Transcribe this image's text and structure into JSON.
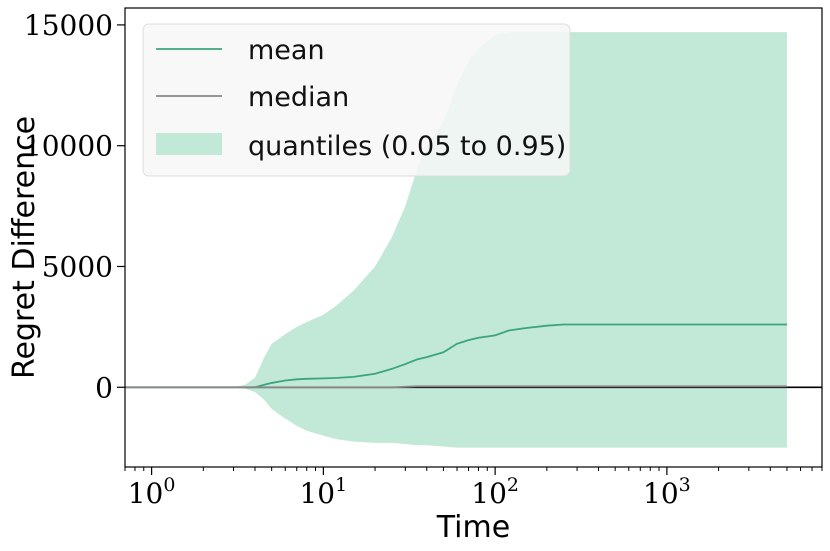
{
  "chart_data": {
    "type": "line",
    "title": "",
    "xlabel": "Time",
    "ylabel": "Regret Difference",
    "xscale": "log",
    "xlim": [
      0.7,
      8000
    ],
    "ylim": [
      -3300,
      15700
    ],
    "x_ticks": [
      {
        "value": 1,
        "base": "10",
        "exp": "0"
      },
      {
        "value": 10,
        "base": "10",
        "exp": "1"
      },
      {
        "value": 100,
        "base": "10",
        "exp": "2"
      },
      {
        "value": 1000,
        "base": "10",
        "exp": "3"
      }
    ],
    "y_ticks": [
      {
        "value": 0,
        "label": "0"
      },
      {
        "value": 5000,
        "label": "5000"
      },
      {
        "value": 10000,
        "label": "10000"
      },
      {
        "value": 15000,
        "label": "15000"
      }
    ],
    "grid": false,
    "legend": {
      "position": "top-left",
      "entries": [
        {
          "key": "mean",
          "label": "mean"
        },
        {
          "key": "median",
          "label": "median"
        },
        {
          "key": "quantiles",
          "label": "quantiles (0.05 to 0.95)"
        }
      ]
    },
    "colors": {
      "mean": "#3aa67a",
      "median": "#888888",
      "quantiles": "#c2e8d7",
      "zero_line": "#000000"
    },
    "zero_line": 0,
    "x": [
      0.7,
      1,
      2,
      3,
      3.5,
      4,
      4.5,
      5,
      6,
      7,
      8,
      10,
      12,
      15,
      20,
      25,
      30,
      35,
      40,
      50,
      60,
      70,
      80,
      100,
      120,
      150,
      200,
      250,
      300,
      500,
      1000,
      2000,
      5000
    ],
    "series": [
      {
        "name": "mean",
        "values": [
          0,
          0,
          0,
          0,
          0,
          0,
          100,
          180,
          280,
          330,
          350,
          370,
          390,
          430,
          560,
          760,
          960,
          1150,
          1250,
          1450,
          1800,
          1950,
          2050,
          2150,
          2350,
          2450,
          2550,
          2600,
          2600,
          2600,
          2600,
          2600,
          2600
        ]
      },
      {
        "name": "median",
        "values": [
          0,
          0,
          0,
          0,
          0,
          0,
          0,
          0,
          0,
          0,
          0,
          0,
          0,
          0,
          0,
          0,
          20,
          40,
          40,
          40,
          40,
          40,
          40,
          40,
          40,
          40,
          40,
          40,
          40,
          40,
          40,
          40,
          40
        ]
      }
    ],
    "band": {
      "name": "quantiles (0.05 to 0.95)",
      "lower": [
        0,
        0,
        0,
        0,
        -50,
        -200,
        -500,
        -900,
        -1300,
        -1600,
        -1800,
        -2000,
        -2150,
        -2250,
        -2300,
        -2300,
        -2350,
        -2400,
        -2400,
        -2450,
        -2500,
        -2500,
        -2500,
        -2500,
        -2500,
        -2500,
        -2500,
        -2500,
        -2500,
        -2500,
        -2500,
        -2500,
        -2500
      ],
      "upper": [
        0,
        0,
        0,
        0,
        100,
        400,
        1200,
        1800,
        2200,
        2500,
        2700,
        3000,
        3400,
        4000,
        5000,
        6200,
        7500,
        9000,
        10000,
        11000,
        12500,
        13500,
        14000,
        14600,
        14700,
        14700,
        14700,
        14700,
        14700,
        14700,
        14700,
        14700,
        14700
      ]
    }
  }
}
